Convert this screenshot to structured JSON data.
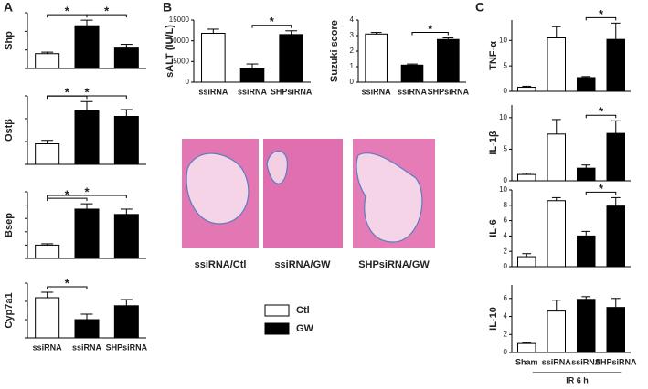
{
  "panels": [
    "A",
    "B",
    "C"
  ],
  "images": [
    "ssiRNA/Ctl",
    "ssiRNA/GW",
    "SHPsiRNA/GW"
  ],
  "legend": [
    {
      "name": "Ctl",
      "color": "#ffffff"
    },
    {
      "name": "GW",
      "color": "#000000"
    }
  ],
  "group_label": "IR 6 h",
  "chart_data": [
    {
      "type": "bar",
      "ylabel": "Shp",
      "values": [
        0.4,
        1.15,
        0.55
      ],
      "errors": [
        0.04,
        0.15,
        0.1
      ],
      "colors": [
        "#ffffff",
        "#000000",
        "#000000"
      ],
      "ylim": [
        0,
        1.5
      ],
      "yticks": [
        0,
        0.5,
        1,
        1.5
      ],
      "tick_labels": false,
      "annotations": [
        "*",
        "*"
      ]
    },
    {
      "type": "bar",
      "ylabel": "Ostβ",
      "values": [
        0.9,
        2.35,
        2.1
      ],
      "errors": [
        0.15,
        0.4,
        0.3
      ],
      "colors": [
        "#ffffff",
        "#000000",
        "#000000"
      ],
      "ylim": [
        0,
        3
      ],
      "yticks": [
        0,
        1,
        2,
        3
      ],
      "tick_labels": false,
      "annotations": [
        "*",
        "*"
      ]
    },
    {
      "type": "bar",
      "ylabel": "Bsep",
      "values": [
        1,
        3.7,
        3.3
      ],
      "errors": [
        0.1,
        0.4,
        0.4
      ],
      "colors": [
        "#ffffff",
        "#000000",
        "#000000"
      ],
      "ylim": [
        0,
        5
      ],
      "yticks": [
        0,
        1,
        2,
        3,
        4,
        5
      ],
      "tick_labels": false,
      "annotations": [
        "*",
        "*"
      ]
    },
    {
      "type": "bar",
      "ylabel": "Cyp7a1",
      "categories": [
        "ssiRNA",
        "ssiRNA",
        "SHPsiRNA"
      ],
      "values": [
        1.1,
        0.5,
        0.88
      ],
      "errors": [
        0.15,
        0.15,
        0.17
      ],
      "colors": [
        "#ffffff",
        "#000000",
        "#000000"
      ],
      "ylim": [
        0,
        1.5
      ],
      "yticks": [
        0,
        0.5,
        1,
        1.5
      ],
      "tick_labels": false,
      "annotations": [
        "*"
      ]
    },
    {
      "type": "bar",
      "ylabel": "sALT (IU/L)",
      "categories": [
        "ssiRNA",
        "ssiRNA",
        "SHPsiRNA"
      ],
      "values": [
        11800,
        3200,
        11500
      ],
      "errors": [
        1000,
        1200,
        900
      ],
      "colors": [
        "#ffffff",
        "#000000",
        "#000000"
      ],
      "ylim": [
        0,
        15000
      ],
      "yticks": [
        0,
        5000,
        10000,
        15000
      ],
      "tick_labels": true,
      "annotations": [
        "*"
      ]
    },
    {
      "type": "bar",
      "ylabel": "Suzuki score",
      "categories": [
        "ssiRNA",
        "ssiRNA",
        "SHPsiRNA"
      ],
      "values": [
        3.1,
        1.1,
        2.75
      ],
      "errors": [
        0.1,
        0.07,
        0.1
      ],
      "colors": [
        "#ffffff",
        "#000000",
        "#000000"
      ],
      "ylim": [
        0,
        4
      ],
      "yticks": [
        0,
        1,
        2,
        3,
        4
      ],
      "tick_labels": true,
      "annotations": [
        "*"
      ]
    },
    {
      "type": "bar",
      "ylabel": "TNF-α",
      "values": [
        0.8,
        10.5,
        2.7,
        10.2
      ],
      "errors": [
        0.2,
        2.2,
        0.2,
        3.2
      ],
      "colors": [
        "#ffffff",
        "#ffffff",
        "#000000",
        "#000000"
      ],
      "ylim": [
        0,
        14
      ],
      "yticks": [
        0,
        5,
        10
      ],
      "tick_labels": true,
      "annotations": [
        "*"
      ]
    },
    {
      "type": "bar",
      "ylabel": "IL-1β",
      "values": [
        1,
        7.4,
        2,
        7.5
      ],
      "errors": [
        0.2,
        2.3,
        0.5,
        2
      ],
      "colors": [
        "#ffffff",
        "#ffffff",
        "#000000",
        "#000000"
      ],
      "ylim": [
        0,
        12
      ],
      "yticks": [
        0,
        5,
        10
      ],
      "tick_labels": true,
      "annotations": [
        "*"
      ]
    },
    {
      "type": "bar",
      "ylabel": "IL-6",
      "values": [
        1.3,
        8.6,
        4,
        7.9
      ],
      "errors": [
        0.4,
        0.4,
        0.6,
        1.1
      ],
      "colors": [
        "#ffffff",
        "#ffffff",
        "#000000",
        "#000000"
      ],
      "ylim": [
        0,
        10
      ],
      "yticks": [
        0,
        2,
        4,
        6,
        8,
        10
      ],
      "tick_labels": true,
      "annotations": [
        "*"
      ]
    },
    {
      "type": "bar",
      "ylabel": "IL-10",
      "categories": [
        "Sham",
        "ssiRNA",
        "ssiRNA",
        "SHPsiRNA"
      ],
      "values": [
        1,
        4.6,
        5.9,
        5
      ],
      "errors": [
        0.1,
        1.2,
        0.3,
        1
      ],
      "colors": [
        "#ffffff",
        "#ffffff",
        "#000000",
        "#000000"
      ],
      "ylim": [
        0,
        7.5
      ],
      "yticks": [
        0,
        2,
        4,
        6
      ],
      "tick_labels": true,
      "annotations": []
    }
  ]
}
